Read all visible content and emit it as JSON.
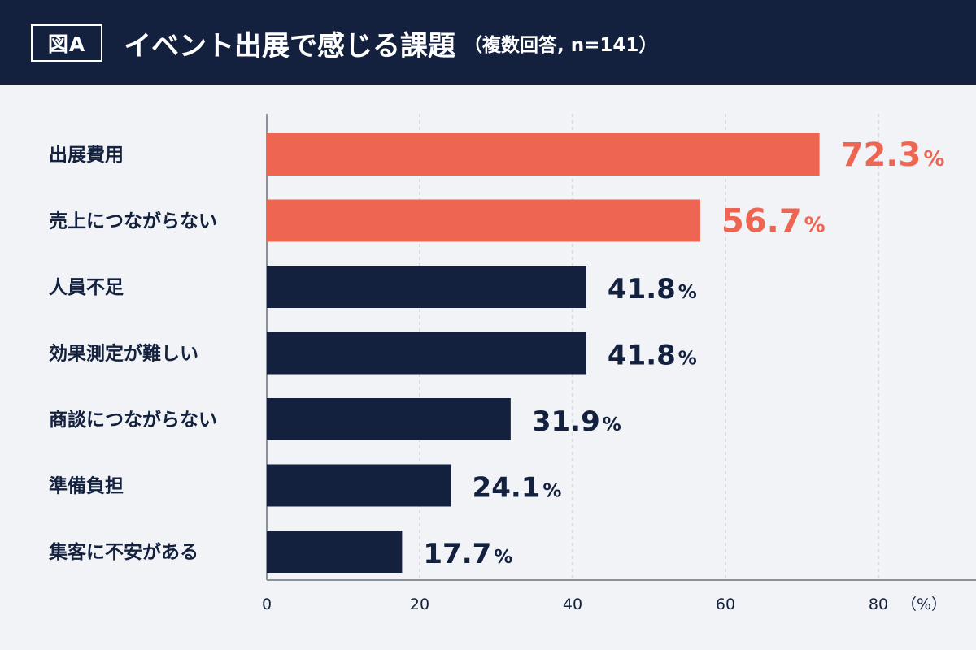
{
  "header": {
    "figure_label": "図A",
    "title": "イベント出展で感じる課題",
    "subtitle": "（複数回答, n=141）"
  },
  "colors": {
    "header_bg": "#13213f",
    "highlight": "#ee6552",
    "default_bar": "#13213f",
    "grid": "#c7ccd5",
    "axis": "#8a909c",
    "label_text": "#13213f"
  },
  "chart_data": {
    "type": "bar",
    "orientation": "horizontal",
    "categories": [
      "出展費用",
      "売上につながらない",
      "人員不足",
      "効果測定が難しい",
      "商談につながらない",
      "準備負担",
      "集客に不安がある"
    ],
    "values": [
      72.3,
      56.7,
      41.8,
      41.8,
      31.9,
      24.1,
      17.7
    ],
    "value_labels": [
      "72.3",
      "56.7",
      "41.8",
      "41.8",
      "31.9",
      "24.1",
      "17.7"
    ],
    "value_unit": "%",
    "highlighted": [
      true,
      true,
      false,
      false,
      false,
      false,
      false
    ],
    "x_ticks": [
      0,
      20,
      40,
      60,
      80
    ],
    "x_tick_labels": [
      "0",
      "20",
      "40",
      "60",
      "80"
    ],
    "x_unit_label": "（%）",
    "xlim": [
      0,
      88
    ],
    "grid": true,
    "gridline_style": "dashed"
  }
}
